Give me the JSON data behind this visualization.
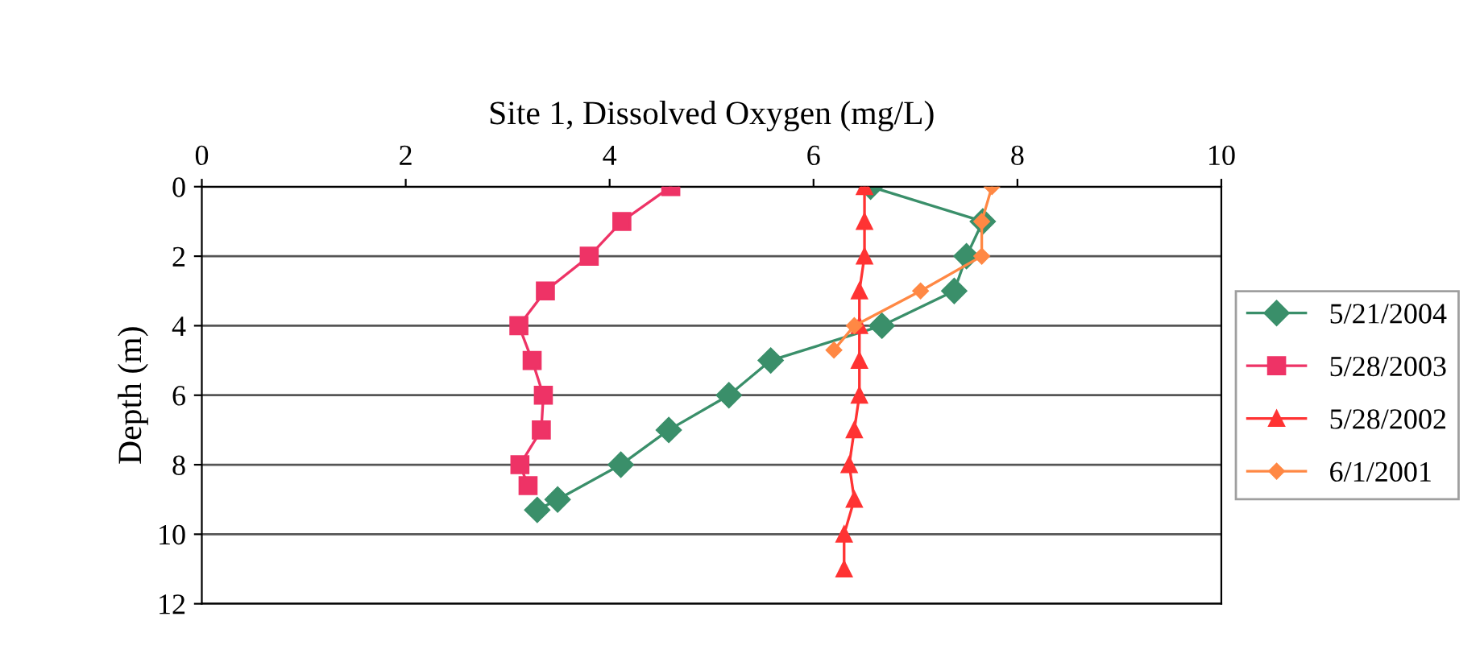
{
  "chart_data": {
    "type": "line",
    "title": "Site 1, Dissolved Oxygen (mg/L)",
    "ylabel": "Depth (m)",
    "xlim": [
      0,
      10
    ],
    "xticks": [
      0,
      2,
      4,
      6,
      8,
      10
    ],
    "ylim": [
      12,
      0
    ],
    "yticks": [
      0,
      2,
      4,
      6,
      8,
      10,
      12
    ],
    "grid": "y",
    "legend": "right",
    "series": [
      {
        "name": "5/21/2004",
        "color": "#3a8f6a",
        "marker": "diamond",
        "x": [
          6.56,
          7.66,
          7.5,
          7.38,
          6.67,
          5.58,
          5.17,
          4.58,
          4.11,
          3.49,
          3.29
        ],
        "values": [
          0,
          1,
          2,
          3,
          4,
          5,
          6,
          7,
          8,
          9,
          9.3
        ]
      },
      {
        "name": "5/28/2003",
        "color": "#ee3366",
        "marker": "square",
        "x": [
          4.6,
          4.12,
          3.8,
          3.37,
          3.11,
          3.24,
          3.35,
          3.33,
          3.12,
          3.2
        ],
        "values": [
          0,
          1,
          2,
          3,
          4,
          5,
          6,
          7,
          8,
          8.6
        ]
      },
      {
        "name": "5/28/2002",
        "color": "#ff3333",
        "marker": "triangle",
        "x": [
          6.5,
          6.5,
          6.5,
          6.45,
          6.45,
          6.45,
          6.45,
          6.4,
          6.35,
          6.4,
          6.3,
          6.3
        ],
        "values": [
          0,
          1,
          2,
          3,
          4,
          5,
          6,
          7,
          8,
          9,
          10,
          11
        ]
      },
      {
        "name": "6/1/2001",
        "color": "#ff8844",
        "marker": "diamond",
        "x": [
          7.75,
          7.65,
          7.65,
          7.05,
          6.4,
          6.2
        ],
        "values": [
          0,
          1,
          2,
          3,
          4,
          4.7
        ]
      }
    ]
  }
}
